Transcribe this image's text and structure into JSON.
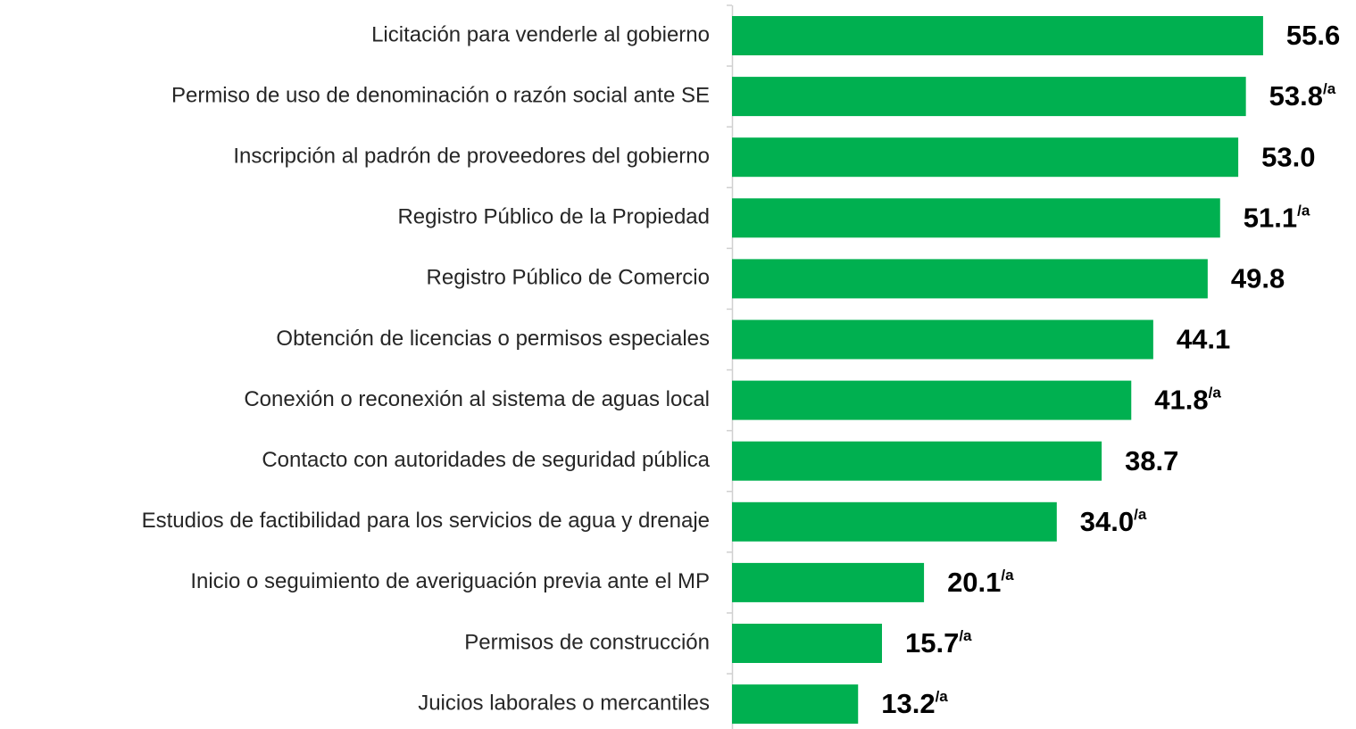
{
  "chart_data": {
    "type": "barh",
    "categories": [
      "Licitación para venderle al gobierno",
      "Permiso de uso de denominación o razón social ante SE",
      "Inscripción al padrón de proveedores del gobierno",
      "Registro Público de la Propiedad",
      "Registro Público de Comercio",
      "Obtención de licencias o permisos especiales",
      "Conexión o reconexión al sistema de aguas local",
      "Contacto con autoridades de seguridad pública",
      "Estudios de factibilidad para los servicios de agua y drenaje",
      "Inicio o seguimiento de averiguación previa ante el MP",
      "Permisos de construcción",
      "Juicios laborales o mercantiles"
    ],
    "values": [
      55.6,
      53.8,
      53.0,
      51.1,
      49.8,
      44.1,
      41.8,
      38.7,
      34.0,
      20.1,
      15.7,
      13.2
    ],
    "value_labels": [
      "55.6",
      "53.8/a",
      "53.0",
      "51.1/a",
      "49.8",
      "44.1",
      "41.8/a",
      "38.7",
      "34.0/a",
      "20.1/a",
      "15.7/a",
      "13.2/a"
    ],
    "color": "#00b050",
    "xlim": [
      0,
      60
    ]
  }
}
